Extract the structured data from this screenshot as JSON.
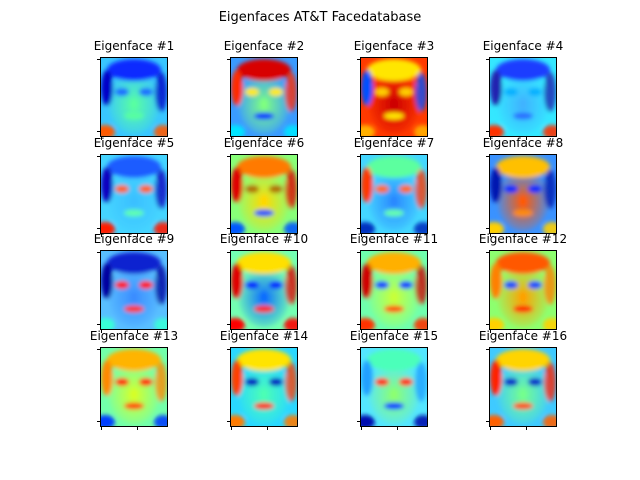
{
  "figure": {
    "title": "Eigenfaces AT&T Facedatabase"
  },
  "colormap": "jet",
  "colors": {
    "jet_low": "#00007f",
    "jet_blue": "#0000ff",
    "jet_cyan": "#00ffff",
    "jet_green": "#7fff7f",
    "jet_yellow": "#ffff00",
    "jet_red": "#ff0000",
    "jet_high": "#7f0000"
  },
  "panels": [
    {
      "title": "Eigenface #1"
    },
    {
      "title": "Eigenface #2"
    },
    {
      "title": "Eigenface #3"
    },
    {
      "title": "Eigenface #4"
    },
    {
      "title": "Eigenface #5"
    },
    {
      "title": "Eigenface #6"
    },
    {
      "title": "Eigenface #7"
    },
    {
      "title": "Eigenface #8"
    },
    {
      "title": "Eigenface #9"
    },
    {
      "title": "Eigenface #10"
    },
    {
      "title": "Eigenface #11"
    },
    {
      "title": "Eigenface #12"
    },
    {
      "title": "Eigenface #13"
    },
    {
      "title": "Eigenface #14"
    },
    {
      "title": "Eigenface #15"
    },
    {
      "title": "Eigenface #16"
    }
  ]
}
